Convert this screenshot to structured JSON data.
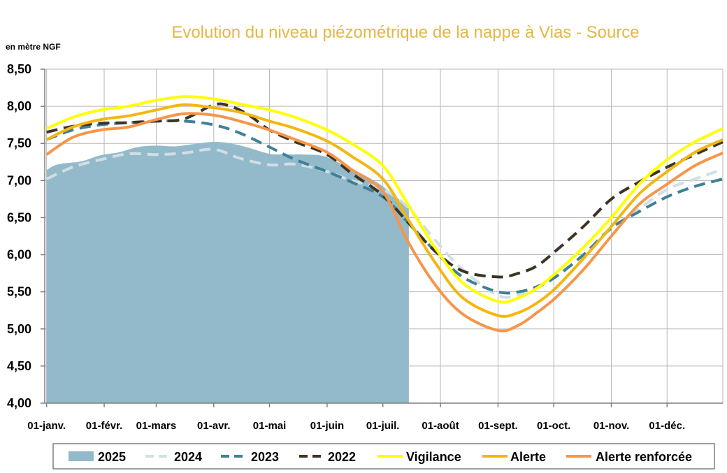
{
  "chart_data": {
    "type": "line",
    "title": "Evolution du niveau piézométrique de la nappe à Vias - Source",
    "ylabel": "en mètre NGF",
    "ylim": [
      4.0,
      8.5
    ],
    "yticks": [
      "4,00",
      "4,50",
      "5,00",
      "5,50",
      "6,00",
      "6,50",
      "7,00",
      "7,50",
      "8,00",
      "8,50"
    ],
    "xlim": [
      0,
      365
    ],
    "x_unit": "day of year (1 = 01-janv.)",
    "xticks": [
      {
        "label": "01-janv.",
        "day": 1
      },
      {
        "label": "01-févr.",
        "day": 32
      },
      {
        "label": "01-mars",
        "day": 60
      },
      {
        "label": "01-avr.",
        "day": 91
      },
      {
        "label": "01-mai",
        "day": 121
      },
      {
        "label": "01-juin",
        "day": 152
      },
      {
        "label": "01-juil.",
        "day": 182
      },
      {
        "label": "01-août",
        "day": 213
      },
      {
        "label": "01-sept.",
        "day": 244
      },
      {
        "label": "01-oct.",
        "day": 274
      },
      {
        "label": "01-nov.",
        "day": 305
      },
      {
        "label": "01-déc.",
        "day": 335
      }
    ],
    "grid": true,
    "legend_position": "bottom",
    "series": [
      {
        "name": "2025",
        "kind": "area",
        "color": "#93BACA",
        "x": [
          1,
          5,
          10,
          20,
          30,
          40,
          50,
          60,
          70,
          80,
          91,
          100,
          110,
          121,
          130,
          140,
          150,
          160,
          170,
          177,
          182,
          190,
          196
        ],
        "y": [
          7.14,
          7.2,
          7.23,
          7.26,
          7.34,
          7.38,
          7.45,
          7.47,
          7.46,
          7.49,
          7.52,
          7.5,
          7.44,
          7.36,
          7.35,
          7.35,
          7.33,
          7.22,
          7.1,
          7.0,
          6.92,
          6.76,
          6.62
        ]
      },
      {
        "name": "2024",
        "kind": "dashed",
        "color": "#D2DEE4",
        "x": [
          1,
          15,
          30,
          45,
          60,
          75,
          91,
          105,
          121,
          135,
          152,
          165,
          182,
          195,
          210,
          225,
          244,
          255,
          265,
          275,
          290,
          305,
          320,
          335,
          350,
          365
        ],
        "y": [
          7.02,
          7.18,
          7.28,
          7.36,
          7.35,
          7.37,
          7.42,
          7.3,
          7.21,
          7.22,
          7.12,
          7.0,
          6.88,
          6.65,
          6.2,
          5.8,
          5.45,
          5.46,
          5.55,
          5.7,
          6.0,
          6.35,
          6.62,
          6.88,
          7.02,
          7.15
        ]
      },
      {
        "name": "2023",
        "kind": "dashed",
        "color": "#3F8097",
        "x": [
          1,
          15,
          30,
          45,
          60,
          75,
          91,
          105,
          121,
          135,
          152,
          165,
          182,
          195,
          210,
          225,
          244,
          255,
          265,
          275,
          290,
          305,
          320,
          335,
          350,
          365
        ],
        "y": [
          7.55,
          7.68,
          7.75,
          7.78,
          7.8,
          7.8,
          7.75,
          7.64,
          7.45,
          7.28,
          7.12,
          6.98,
          6.78,
          6.45,
          6.05,
          5.7,
          5.5,
          5.5,
          5.57,
          5.7,
          6.0,
          6.36,
          6.58,
          6.78,
          6.92,
          7.02
        ]
      },
      {
        "name": "2022",
        "kind": "dashed",
        "color": "#3B3424",
        "x": [
          1,
          15,
          30,
          45,
          60,
          75,
          91,
          100,
          110,
          121,
          135,
          152,
          165,
          182,
          195,
          210,
          225,
          244,
          255,
          265,
          275,
          290,
          305,
          320,
          335,
          350,
          365
        ],
        "y": [
          7.65,
          7.73,
          7.77,
          7.78,
          7.8,
          7.83,
          8.02,
          8.0,
          7.88,
          7.68,
          7.52,
          7.35,
          7.1,
          6.8,
          6.45,
          6.05,
          5.78,
          5.7,
          5.75,
          5.85,
          6.05,
          6.38,
          6.75,
          6.98,
          7.18,
          7.35,
          7.52
        ]
      },
      {
        "name": "Vigilance",
        "kind": "solid",
        "color": "#FFFF00",
        "x": [
          1,
          15,
          30,
          45,
          60,
          75,
          91,
          105,
          121,
          135,
          152,
          165,
          182,
          195,
          210,
          225,
          244,
          255,
          265,
          275,
          290,
          305,
          320,
          335,
          350,
          365
        ],
        "y": [
          7.7,
          7.85,
          7.95,
          8.0,
          8.08,
          8.13,
          8.1,
          8.03,
          7.95,
          7.85,
          7.68,
          7.5,
          7.2,
          6.7,
          6.1,
          5.62,
          5.37,
          5.42,
          5.55,
          5.75,
          6.1,
          6.5,
          6.95,
          7.28,
          7.52,
          7.7
        ]
      },
      {
        "name": "Alerte",
        "kind": "solid",
        "color": "#F2B710",
        "x": [
          1,
          15,
          30,
          45,
          60,
          75,
          91,
          105,
          121,
          135,
          152,
          165,
          182,
          195,
          210,
          225,
          244,
          255,
          265,
          275,
          290,
          305,
          320,
          335,
          350,
          365
        ],
        "y": [
          7.55,
          7.72,
          7.82,
          7.87,
          7.95,
          8.02,
          7.98,
          7.92,
          7.8,
          7.7,
          7.53,
          7.33,
          7.02,
          6.5,
          5.9,
          5.42,
          5.18,
          5.22,
          5.35,
          5.55,
          5.95,
          6.38,
          6.82,
          7.12,
          7.38,
          7.55
        ]
      },
      {
        "name": "Alerte renforcée",
        "kind": "solid",
        "color": "#F5964A",
        "x": [
          1,
          15,
          30,
          45,
          60,
          75,
          91,
          105,
          121,
          135,
          152,
          165,
          182,
          195,
          210,
          225,
          244,
          255,
          265,
          275,
          290,
          305,
          320,
          335,
          350,
          365
        ],
        "y": [
          7.35,
          7.58,
          7.68,
          7.72,
          7.82,
          7.9,
          7.88,
          7.8,
          7.68,
          7.55,
          7.38,
          7.15,
          6.85,
          6.2,
          5.6,
          5.2,
          4.98,
          5.05,
          5.22,
          5.42,
          5.8,
          6.25,
          6.68,
          6.95,
          7.2,
          7.37
        ]
      }
    ]
  }
}
